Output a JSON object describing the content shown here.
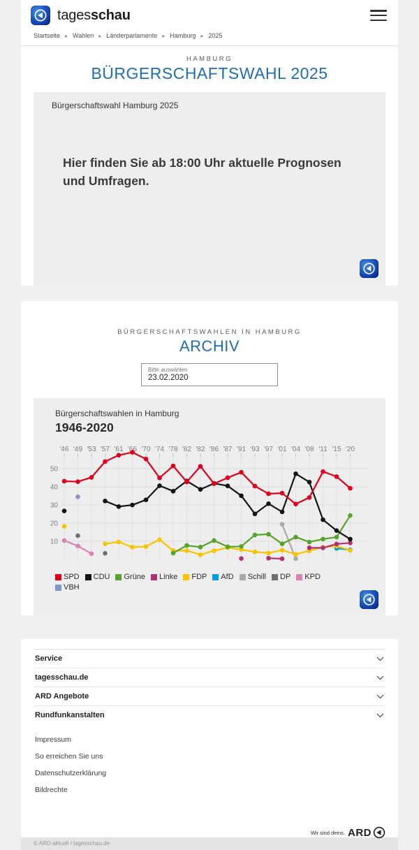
{
  "header": {
    "brand_prefix": "tages",
    "brand_suffix": "schau"
  },
  "breadcrumb": {
    "separator": "▸",
    "items": [
      "Startseite",
      "Wahlen",
      "Länderparlamente",
      "Hamburg",
      "2025"
    ]
  },
  "hero": {
    "kicker": "HAMBURG",
    "title": "BÜRGERSCHAFTSWAHL 2025"
  },
  "teaser": {
    "label": "Bürgerschaftswahl Hamburg 2025",
    "message": "Hier finden Sie ab 18:00 Uhr aktuelle Prognosen und Umfragen."
  },
  "archive": {
    "kicker": "BÜRGERSCHAFTSWAHLEN IN HAMBURG",
    "title": "ARCHIV",
    "select_label": "Bitte auswählen",
    "select_value": "23.02.2020"
  },
  "chart_data": {
    "type": "line",
    "subtitle": "Bürgerschaftswahlen in Hamburg",
    "title": "1946-2020",
    "unit": "%",
    "categories": [
      "'46",
      "'49",
      "'53",
      "'57",
      "'61",
      "'66",
      "'70",
      "'74",
      "'78",
      "'82",
      "'82",
      "'86",
      "'87",
      "'91",
      "'93",
      "'97",
      "'01",
      "'04",
      "'08",
      "'11",
      "'15",
      "'20"
    ],
    "yticks": [
      10,
      20,
      30,
      40,
      50
    ],
    "ylim": [
      0,
      60
    ],
    "grid": true,
    "legend_position": "bottom",
    "series": [
      {
        "name": "SPD",
        "color": "#e2001a",
        "values": [
          43.1,
          42.8,
          45.2,
          53.9,
          57.4,
          59.0,
          55.3,
          44.9,
          51.5,
          42.7,
          51.3,
          41.7,
          45.0,
          48.0,
          40.4,
          36.2,
          36.5,
          30.5,
          34.1,
          48.4,
          45.6,
          39.2
        ]
      },
      {
        "name": "CDU",
        "color": "#141414",
        "values": [
          26.7,
          null,
          null,
          32.2,
          29.1,
          30.0,
          32.8,
          40.6,
          37.6,
          43.2,
          38.6,
          41.9,
          40.5,
          35.1,
          25.1,
          30.7,
          26.2,
          47.2,
          42.6,
          21.9,
          15.9,
          11.2
        ]
      },
      {
        "name": "Grüne",
        "color": "#55a32a",
        "values": [
          null,
          null,
          null,
          null,
          null,
          null,
          null,
          null,
          3.5,
          7.7,
          6.8,
          10.4,
          7.0,
          7.2,
          13.5,
          13.9,
          8.6,
          12.3,
          9.6,
          11.2,
          12.3,
          24.2
        ]
      },
      {
        "name": "Linke",
        "color": "#b23175",
        "values": [
          null,
          null,
          null,
          null,
          null,
          null,
          null,
          null,
          null,
          null,
          null,
          null,
          null,
          0.5,
          null,
          0.7,
          0.4,
          null,
          6.4,
          6.4,
          8.5,
          9.1
        ]
      },
      {
        "name": "FDP",
        "color": "#f6c500",
        "values": [
          18.2,
          null,
          null,
          8.6,
          9.6,
          6.8,
          7.1,
          10.9,
          4.8,
          4.9,
          2.6,
          4.8,
          6.5,
          5.4,
          4.2,
          3.5,
          5.1,
          2.8,
          4.8,
          6.7,
          7.4,
          5.0
        ]
      },
      {
        "name": "AfD",
        "color": "#009de0",
        "values": [
          null,
          null,
          null,
          null,
          null,
          null,
          null,
          null,
          null,
          null,
          null,
          null,
          null,
          null,
          null,
          null,
          null,
          null,
          null,
          null,
          6.1,
          5.3
        ]
      },
      {
        "name": "Schill",
        "color": "#a9a9a9",
        "values": [
          null,
          null,
          null,
          null,
          null,
          null,
          null,
          null,
          null,
          null,
          null,
          null,
          null,
          null,
          null,
          null,
          19.4,
          0.4,
          null,
          null,
          null,
          null
        ]
      },
      {
        "name": "DP",
        "color": "#6f6f6f",
        "values": [
          null,
          13.1,
          null,
          3.4,
          null,
          null,
          null,
          null,
          null,
          null,
          null,
          null,
          null,
          null,
          null,
          null,
          null,
          null,
          null,
          null,
          null,
          null
        ]
      },
      {
        "name": "KPD",
        "color": "#d983b4",
        "values": [
          10.4,
          7.4,
          3.2,
          null,
          null,
          null,
          null,
          null,
          null,
          null,
          null,
          null,
          null,
          null,
          null,
          null,
          null,
          null,
          null,
          null,
          null,
          null
        ]
      },
      {
        "name": "VBH",
        "color": "#7e96c9",
        "values": [
          null,
          34.5,
          null,
          null,
          null,
          null,
          null,
          null,
          null,
          null,
          null,
          null,
          null,
          null,
          null,
          null,
          null,
          null,
          null,
          null,
          null,
          null
        ]
      }
    ]
  },
  "footer": {
    "accordion": [
      {
        "label": "Service"
      },
      {
        "label": "tagesschau.de"
      },
      {
        "label": "ARD Angebote"
      },
      {
        "label": "Rundfunkanstalten"
      }
    ],
    "links": [
      "Impressum",
      "So erreichen Sie uns",
      "Datenschutzerklärung",
      "Bildrechte"
    ],
    "brand_claim": "Wir sind deins.",
    "brand_name": "ARD",
    "copyright": "© ARD-aktuell / tagesschau.de"
  },
  "colors": {
    "accent_blue": "#1d6eb4",
    "card_gray": "#eeeeee",
    "page_bg": "#f0f0f0"
  }
}
